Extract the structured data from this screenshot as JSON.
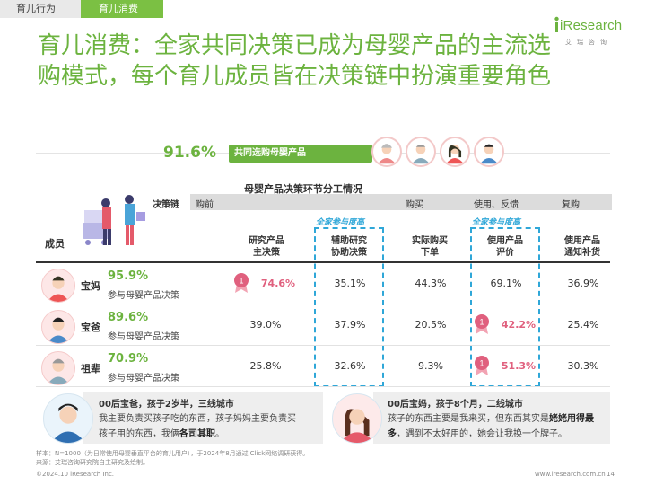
{
  "tabs": [
    "育儿行为",
    "育儿消费"
  ],
  "logo": {
    "word": "iResearch",
    "sub": "艾瑞咨询"
  },
  "title": "育儿消费：全家共同决策已成为母婴产品的主流选购模式，每个育儿成员皆在决策链中扮演重要角色",
  "banner": {
    "pct": "91.6%",
    "label": "共同选购母婴产品",
    "progress": 91.6
  },
  "table": {
    "title": "母婴产品决策环节分工情况",
    "chain_label": "决策链",
    "chain_items": [
      "购前",
      "购买",
      "使用、反馈",
      "复购"
    ],
    "all_family_label": "全家参与度高",
    "member_header": "成员",
    "columns": [
      {
        "l1": "研究产品",
        "l2": "主决策"
      },
      {
        "l1": "辅助研究",
        "l2": "协助决策"
      },
      {
        "l1": "实际购买",
        "l2": "下单"
      },
      {
        "l1": "使用产品",
        "l2": "评价"
      },
      {
        "l1": "使用产品",
        "l2": "通知补货"
      }
    ],
    "rows": [
      {
        "name": "宝妈",
        "pct": "95.9%",
        "desc": "参与母婴产品决策",
        "values": [
          "74.6%",
          "35.1%",
          "44.3%",
          "69.1%",
          "36.9%"
        ],
        "rank1": 0
      },
      {
        "name": "宝爸",
        "pct": "89.6%",
        "desc": "参与母婴产品决策",
        "values": [
          "39.0%",
          "37.9%",
          "20.5%",
          "42.2%",
          "25.4%"
        ],
        "rank1": 3
      },
      {
        "name": "祖辈",
        "pct": "70.9%",
        "desc": "参与母婴产品决策",
        "values": [
          "25.8%",
          "32.6%",
          "9.3%",
          "51.3%",
          "30.3%"
        ],
        "rank1": 3
      }
    ],
    "rank_label": "1"
  },
  "quotes": [
    {
      "head": "00后宝爸，孩子2岁半，三线城市",
      "line1": "我主要负责买孩子吃的东西，孩子妈妈主要负责买",
      "line2a": "孩子用的东西，我俩",
      "line2b": "各司其职",
      "line2c": "。"
    },
    {
      "head": "00后宝妈，孩子8个月，二线城市",
      "line1a": "孩子的东西主要是我来买，但东西其实是",
      "line1b": "姥姥用得最",
      "line2a": "多",
      "line2b": "，遇到不太好用的，她会让我换一个牌子。"
    }
  ],
  "footnotes": [
    "样本：N=1000（为日常使用母婴垂直平台的育儿用户），于2024年8月通过iClick网络调研获得。",
    "来源：艾瑞咨询研究院自主研究及绘制。"
  ],
  "footer": {
    "copyright": "©2024.10 iResearch Inc.",
    "url": "www.iresearch.com.cn",
    "page": "14"
  },
  "colors": {
    "accent": "#6cb33f",
    "highlight": "#e0607e",
    "dash": "#2fa7d8"
  }
}
